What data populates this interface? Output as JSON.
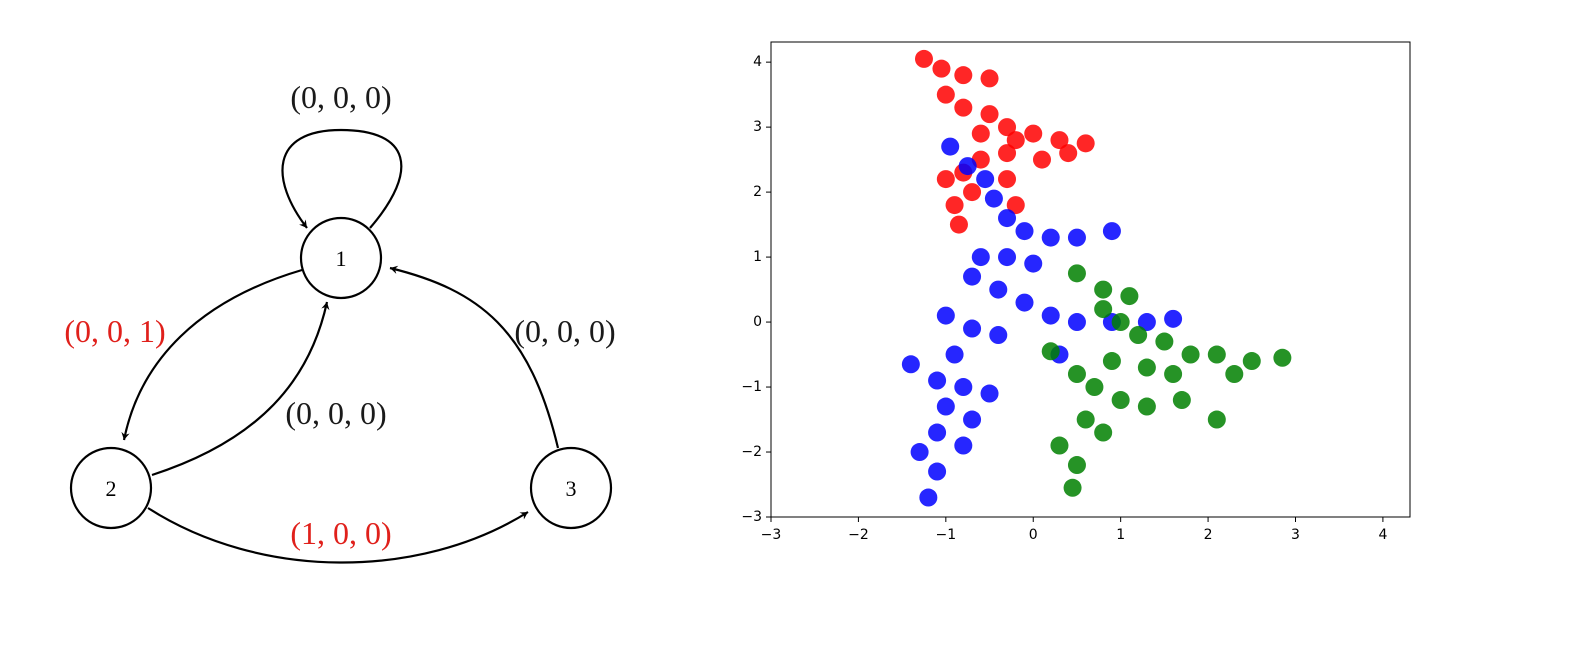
{
  "diagram": {
    "nodes": [
      {
        "label": "1"
      },
      {
        "label": "2"
      },
      {
        "label": "3"
      }
    ],
    "edges": [
      {
        "label": "(0, 0, 0)",
        "color": "#1a1a1a"
      },
      {
        "label": "(0, 0, 1)",
        "color": "#e0201b"
      },
      {
        "label": "(0, 0, 0)",
        "color": "#1a1a1a"
      },
      {
        "label": "(0, 0, 0)",
        "color": "#1a1a1a"
      },
      {
        "label": "(1, 0, 0)",
        "color": "#e0201b"
      }
    ]
  },
  "chart_data": {
    "type": "scatter",
    "xlim": [
      -3,
      4.31
    ],
    "ylim": [
      -3,
      4.31
    ],
    "xticks": [
      {
        "value": -3,
        "label": "−3"
      },
      {
        "value": -2,
        "label": "−2"
      },
      {
        "value": -1,
        "label": "−1"
      },
      0,
      1,
      2,
      3,
      4
    ],
    "yticks": [
      {
        "value": -3,
        "label": "−3"
      },
      {
        "value": -2,
        "label": "−2"
      },
      {
        "value": -1,
        "label": "−1"
      },
      0,
      1,
      2,
      3,
      4
    ],
    "series": [
      {
        "color": "#ff0000",
        "x": [
          -1.25,
          -1.05,
          -0.8,
          -0.5,
          -1.0,
          -0.8,
          -0.5,
          -0.3,
          -0.6,
          -0.2,
          0.0,
          0.3,
          0.6,
          0.4,
          0.1,
          -0.3,
          -0.6,
          -0.8,
          -1.0,
          -0.7,
          -0.9,
          -0.85,
          -0.3,
          -0.2
        ],
        "values": [
          4.05,
          3.9,
          3.8,
          3.75,
          3.5,
          3.3,
          3.2,
          3.0,
          2.9,
          2.8,
          2.9,
          2.8,
          2.75,
          2.6,
          2.5,
          2.6,
          2.5,
          2.3,
          2.2,
          2.0,
          1.8,
          1.5,
          2.2,
          1.8
        ]
      },
      {
        "color": "#0000ff",
        "x": [
          -0.95,
          -0.75,
          -0.55,
          -0.45,
          -0.3,
          -0.1,
          0.2,
          0.5,
          0.9,
          -0.6,
          -0.3,
          0.0,
          -0.7,
          -0.4,
          -0.1,
          0.2,
          0.5,
          0.9,
          1.3,
          1.6,
          -1.0,
          -0.7,
          -0.4,
          0.3,
          -0.9,
          -1.4,
          -1.1,
          -0.8,
          -0.5,
          -1.0,
          -0.7,
          -1.1,
          -0.8,
          -1.3,
          -1.1,
          -1.2
        ],
        "values": [
          2.7,
          2.4,
          2.2,
          1.9,
          1.6,
          1.4,
          1.3,
          1.3,
          1.4,
          1.0,
          1.0,
          0.9,
          0.7,
          0.5,
          0.3,
          0.1,
          0.0,
          0.0,
          0.0,
          0.05,
          0.1,
          -0.1,
          -0.2,
          -0.5,
          -0.5,
          -0.65,
          -0.9,
          -1.0,
          -1.1,
          -1.3,
          -1.5,
          -1.7,
          -1.9,
          -2.0,
          -2.3,
          -2.7
        ]
      },
      {
        "color": "#008000",
        "x": [
          0.5,
          0.8,
          1.1,
          0.8,
          1.0,
          1.2,
          1.5,
          1.8,
          2.1,
          2.5,
          2.85,
          2.3,
          1.6,
          1.3,
          0.9,
          0.2,
          0.5,
          0.7,
          1.0,
          1.3,
          2.1,
          0.6,
          0.8,
          0.3,
          0.5,
          0.45,
          1.7
        ],
        "values": [
          0.75,
          0.5,
          0.4,
          0.2,
          0.0,
          -0.2,
          -0.3,
          -0.5,
          -0.5,
          -0.6,
          -0.55,
          -0.8,
          -0.8,
          -0.7,
          -0.6,
          -0.45,
          -0.8,
          -1.0,
          -1.2,
          -1.3,
          -1.5,
          -1.5,
          -1.7,
          -1.9,
          -2.2,
          -2.55,
          -1.2
        ]
      }
    ]
  }
}
